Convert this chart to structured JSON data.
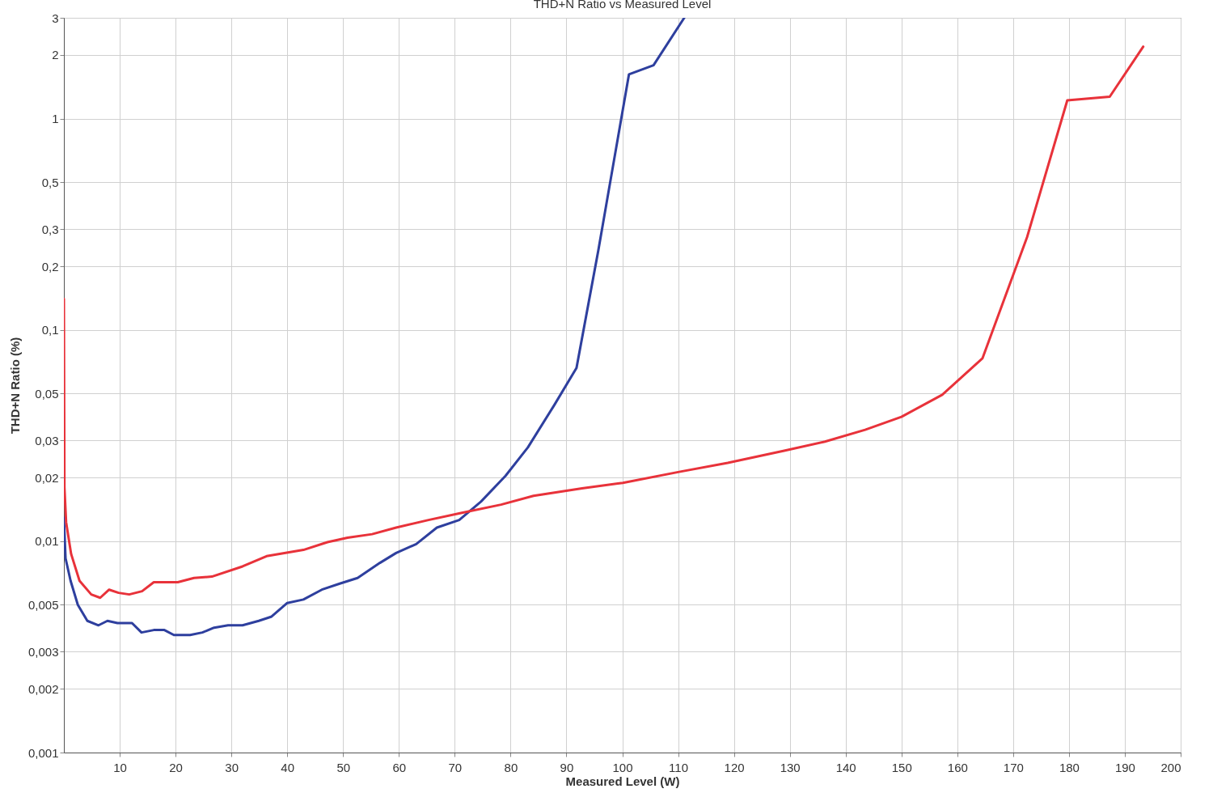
{
  "chart_data": {
    "type": "line",
    "title": "THD+N Ratio vs Measured Level",
    "xlabel": "Measured Level (W)",
    "ylabel": "THD+N Ratio (%)",
    "log": "y",
    "grid": true,
    "xlim": [
      0,
      200
    ],
    "xticks": [
      10,
      20,
      30,
      40,
      50,
      60,
      70,
      80,
      90,
      100,
      110,
      120,
      130,
      140,
      150,
      160,
      170,
      180,
      190,
      200
    ],
    "ylim": [
      0.001,
      3
    ],
    "yticks": [
      {
        "value": 0.001,
        "label": "0,001"
      },
      {
        "value": 0.002,
        "label": "0,002"
      },
      {
        "value": 0.003,
        "label": "0,003"
      },
      {
        "value": 0.005,
        "label": "0,005"
      },
      {
        "value": 0.01,
        "label": "0,01"
      },
      {
        "value": 0.02,
        "label": "0,02"
      },
      {
        "value": 0.03,
        "label": "0,03"
      },
      {
        "value": 0.05,
        "label": "0,05"
      },
      {
        "value": 0.1,
        "label": "0,1"
      },
      {
        "value": 0.2,
        "label": "0,2"
      },
      {
        "value": 0.3,
        "label": "0,3"
      },
      {
        "value": 0.5,
        "label": "0,5"
      },
      {
        "value": 1,
        "label": "1"
      },
      {
        "value": 2,
        "label": "2"
      },
      {
        "value": 3,
        "label": "3"
      }
    ],
    "series": [
      {
        "color": "#2e3f9e",
        "x": [
          0,
          0.3,
          1.2,
          2.5,
          4.2,
          6.2,
          7.8,
          9.6,
          12.2,
          13.9,
          16.1,
          18,
          19.7,
          22.6,
          24.8,
          26.9,
          29.4,
          32,
          34.9,
          37.2,
          40,
          42.9,
          46.2,
          49.4,
          52.6,
          56.6,
          59.5,
          63.1,
          66.8,
          70.8,
          74.7,
          79.1,
          83.1,
          87.8,
          91.8,
          95.7,
          101.2,
          105.6,
          111.1
        ],
        "values": [
          0.0129,
          0.0083,
          0.0065,
          0.005,
          0.0042,
          0.004,
          0.0042,
          0.0041,
          0.0041,
          0.0037,
          0.0038,
          0.0038,
          0.0036,
          0.0036,
          0.0037,
          0.0039,
          0.004,
          0.004,
          0.0042,
          0.0044,
          0.0051,
          0.0053,
          0.0059,
          0.0063,
          0.0067,
          0.0079,
          0.0088,
          0.0097,
          0.0116,
          0.0126,
          0.0154,
          0.0204,
          0.0278,
          0.044,
          0.066,
          0.237,
          1.62,
          1.79,
          3
        ]
      },
      {
        "color": "#e8323a",
        "x": [
          0,
          0.1,
          0.4,
          1.3,
          2.8,
          4.9,
          6.5,
          8.1,
          9.8,
          11.7,
          14,
          16.1,
          20.4,
          23.3,
          26.5,
          32,
          36.3,
          42.9,
          47.2,
          50.8,
          55.2,
          59.5,
          65.3,
          71.1,
          78.3,
          84.1,
          92.8,
          100.1,
          110.2,
          118.9,
          129,
          136.3,
          143.5,
          150,
          157.3,
          164.5,
          172.5,
          179.7,
          187.3,
          193.3
        ],
        "values": [
          0.14,
          0.018,
          0.0123,
          0.0087,
          0.0065,
          0.0056,
          0.0054,
          0.0059,
          0.0057,
          0.0056,
          0.0058,
          0.0064,
          0.0064,
          0.0067,
          0.0068,
          0.0076,
          0.0085,
          0.0091,
          0.0099,
          0.0104,
          0.0108,
          0.0116,
          0.0126,
          0.0136,
          0.0149,
          0.0164,
          0.0178,
          0.0189,
          0.0213,
          0.0235,
          0.0268,
          0.0296,
          0.0337,
          0.0388,
          0.0493,
          0.0733,
          0.275,
          1.22,
          1.27,
          2.19
        ]
      }
    ]
  }
}
